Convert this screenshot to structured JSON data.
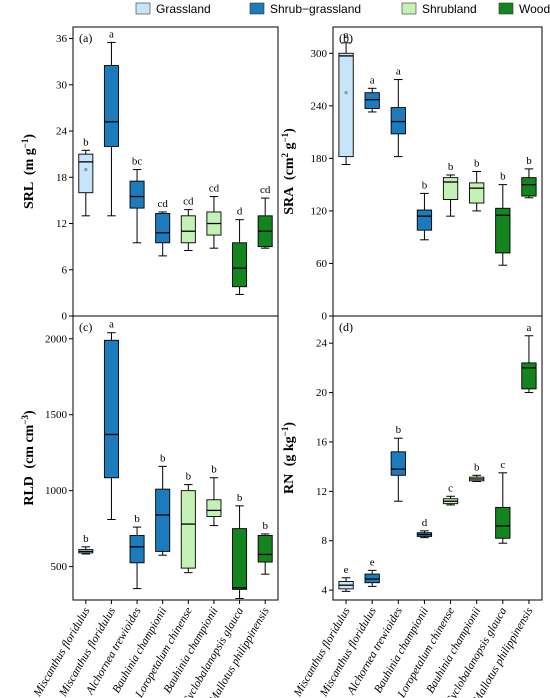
{
  "legend": {
    "items": [
      {
        "label": "Grassland",
        "color": "#c8e4f8"
      },
      {
        "label": "Shrub−grassland",
        "color": "#1b7bbd"
      },
      {
        "label": "Shrubland",
        "color": "#c4f2b4"
      },
      {
        "label": "Woodland",
        "color": "#14851e"
      }
    ]
  },
  "chart_data": [
    {
      "type": "box",
      "panel": "(a)",
      "ylabel_main": "SRL",
      "ylabel_unit": "(m g",
      "ylabel_sup": "−1",
      "ylabel_close": ")",
      "ylim": [
        0,
        37.5
      ],
      "yticks": [
        0,
        6,
        12,
        18,
        24,
        30,
        36
      ],
      "grid": false,
      "categories": [
        "Miscanthus floridulus",
        "Miscanthus floridulus",
        "Alchornea trewioides",
        "Bauhinia championii",
        "Loropetalum chinense",
        "Bauhinia championii",
        "Cyclobalanopsis glauca",
        "Mallotus philippinensis"
      ],
      "groups": [
        "Grassland",
        "Shrub−grassland",
        "Shrub−grassland",
        "Shrub−grassland",
        "Shrubland",
        "Shrubland",
        "Woodland",
        "Woodland"
      ],
      "boxes": [
        {
          "min": 13,
          "q1": 16,
          "median": 20,
          "q3": 21,
          "max": 21.5,
          "mean": 19
        },
        {
          "min": 13,
          "q1": 22,
          "median": 25.2,
          "q3": 32.5,
          "max": 35.5
        },
        {
          "min": 9.5,
          "q1": 14,
          "median": 15.5,
          "q3": 17.5,
          "max": 19
        },
        {
          "min": 7.8,
          "q1": 9.5,
          "median": 10.8,
          "q3": 13.3,
          "max": 13.5
        },
        {
          "min": 8.5,
          "q1": 9.5,
          "median": 11,
          "q3": 13,
          "max": 13.8
        },
        {
          "min": 8.8,
          "q1": 10.5,
          "median": 12,
          "q3": 13.5,
          "max": 15.5
        },
        {
          "min": 2.8,
          "q1": 3.8,
          "median": 6.2,
          "q3": 9.5,
          "max": 12.5
        },
        {
          "min": 8.8,
          "q1": 9,
          "median": 11,
          "q3": 13,
          "max": 15.3
        }
      ],
      "letters": [
        "b",
        "a",
        "bc",
        "cd",
        "cd",
        "cd",
        "d",
        "cd"
      ]
    },
    {
      "type": "box",
      "panel": "(b)",
      "ylabel_main": "SRA",
      "ylabel_unit": "(cm",
      "ylabel_sup": "2",
      "ylabel_unit2": " g",
      "ylabel_sup2": "−1",
      "ylabel_close": ")",
      "ylim": [
        0,
        330
      ],
      "yticks": [
        0,
        60,
        120,
        180,
        240,
        300
      ],
      "grid": false,
      "categories": [
        "Miscanthus floridulus",
        "Miscanthus floridulus",
        "Alchornea trewioides",
        "Bauhinia championii",
        "Loropetalum chinense",
        "Bauhinia championii",
        "Cyclobalanopsis glauca",
        "Mallotus philippinensis"
      ],
      "groups": [
        "Grassland",
        "Shrub−grassland",
        "Shrub−grassland",
        "Shrub−grassland",
        "Shrubland",
        "Shrubland",
        "Woodland",
        "Woodland"
      ],
      "boxes": [
        {
          "min": 173,
          "q1": 182,
          "median": 297,
          "q3": 300,
          "max": 312,
          "mean": 255
        },
        {
          "min": 233,
          "q1": 237,
          "median": 247,
          "q3": 255,
          "max": 260
        },
        {
          "min": 182,
          "q1": 208,
          "median": 222,
          "q3": 238,
          "max": 270
        },
        {
          "min": 87,
          "q1": 98,
          "median": 114,
          "q3": 121,
          "max": 140
        },
        {
          "min": 114,
          "q1": 133,
          "median": 153,
          "q3": 158,
          "max": 161
        },
        {
          "min": 120,
          "q1": 129,
          "median": 146,
          "q3": 152,
          "max": 165
        },
        {
          "min": 58,
          "q1": 72,
          "median": 115,
          "q3": 123,
          "max": 150
        },
        {
          "min": 135,
          "q1": 137,
          "median": 150,
          "q3": 158,
          "max": 168
        }
      ],
      "letters": [
        "a",
        "a",
        "a",
        "b",
        "b",
        "b",
        "b",
        "b"
      ]
    },
    {
      "type": "box",
      "panel": "(c)",
      "ylabel_main": "RLD",
      "ylabel_unit": "(cm cm",
      "ylabel_sup": "−3",
      "ylabel_close": ")",
      "ylim": [
        280,
        2150
      ],
      "yticks": [
        500,
        1000,
        1500,
        2000
      ],
      "grid": false,
      "categories": [
        "Miscanthus floridulus",
        "Miscanthus floridulus",
        "Alchornea trewioides",
        "Bauhinia championii",
        "Loropetalum chinense",
        "Bauhinia championii",
        "Cyclobalanopsis glauca",
        "Mallotus philippinensis"
      ],
      "groups": [
        "Grassland",
        "Shrub−grassland",
        "Shrub−grassland",
        "Shrub−grassland",
        "Shrubland",
        "Shrubland",
        "Woodland",
        "Woodland"
      ],
      "boxes": [
        {
          "min": 583,
          "q1": 590,
          "median": 600,
          "q3": 612,
          "max": 630
        },
        {
          "min": 810,
          "q1": 1085,
          "median": 1370,
          "q3": 1990,
          "max": 2040
        },
        {
          "min": 355,
          "q1": 525,
          "median": 630,
          "q3": 705,
          "max": 760
        },
        {
          "min": 575,
          "q1": 600,
          "median": 840,
          "q3": 1010,
          "max": 1160
        },
        {
          "min": 460,
          "q1": 490,
          "median": 780,
          "q3": 1000,
          "max": 1040
        },
        {
          "min": 770,
          "q1": 830,
          "median": 870,
          "q3": 940,
          "max": 1085
        },
        {
          "min": 290,
          "q1": 350,
          "median": 360,
          "q3": 750,
          "max": 900
        },
        {
          "min": 450,
          "q1": 530,
          "median": 580,
          "q3": 705,
          "max": 715
        }
      ],
      "letters": [
        "b",
        "a",
        "b",
        "b",
        "b",
        "b",
        "b",
        "b"
      ]
    },
    {
      "type": "box",
      "panel": "(d)",
      "ylabel_main": "RN",
      "ylabel_unit": "(g kg",
      "ylabel_sup": "−1",
      "ylabel_close": ")",
      "ylim": [
        3.2,
        26.2
      ],
      "yticks": [
        4,
        8,
        12,
        16,
        20,
        24
      ],
      "grid": false,
      "categories": [
        "Miscanthus floridulus",
        "Miscanthus floridulus",
        "Alchornea trewioides",
        "Bauhinia championii",
        "Loropetalum chinense",
        "Bauhinia championii",
        "Cyclobalanopsis glauca",
        "Mallotus philippinensis"
      ],
      "groups": [
        "Grassland",
        "Shrub−grassland",
        "Shrub−grassland",
        "Shrub−grassland",
        "Shrubland",
        "Shrubland",
        "Woodland",
        "Woodland"
      ],
      "boxes": [
        {
          "min": 3.9,
          "q1": 4.1,
          "median": 4.4,
          "q3": 4.7,
          "max": 5.0
        },
        {
          "min": 4.3,
          "q1": 4.6,
          "median": 4.9,
          "q3": 5.3,
          "max": 5.6
        },
        {
          "min": 11.2,
          "q1": 13.3,
          "median": 13.8,
          "q3": 15.2,
          "max": 16.3
        },
        {
          "min": 8.25,
          "q1": 8.35,
          "median": 8.5,
          "q3": 8.65,
          "max": 8.8
        },
        {
          "min": 10.9,
          "q1": 11.0,
          "median": 11.2,
          "q3": 11.4,
          "max": 11.6
        },
        {
          "min": 12.8,
          "q1": 12.85,
          "median": 13.0,
          "q3": 13.15,
          "max": 13.3
        },
        {
          "min": 7.8,
          "q1": 8.2,
          "median": 9.2,
          "q3": 10.7,
          "max": 13.5
        },
        {
          "min": 20.0,
          "q1": 20.3,
          "median": 22.0,
          "q3": 22.4,
          "max": 24.6
        }
      ],
      "letters": [
        "e",
        "e",
        "b",
        "d",
        "c",
        "b",
        "c",
        "a"
      ]
    }
  ]
}
